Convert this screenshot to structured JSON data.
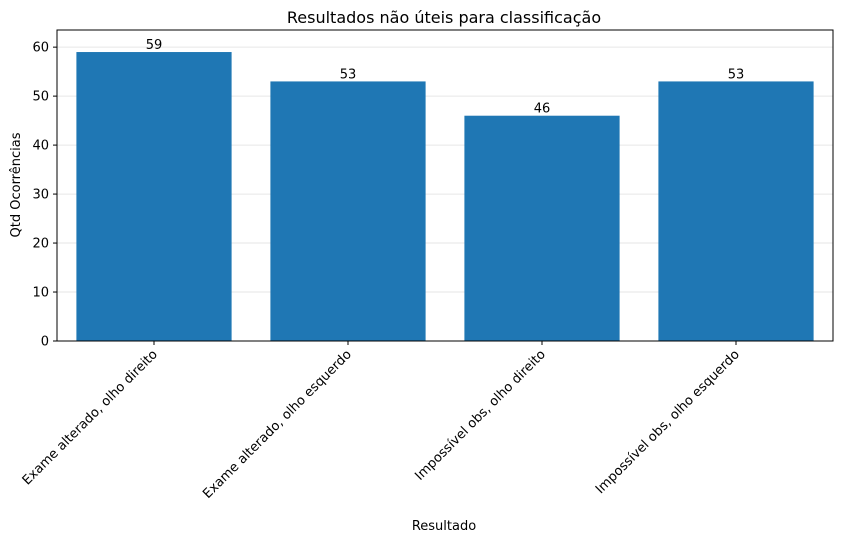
{
  "chart_data": {
    "type": "bar",
    "title": "Resultados não úteis para classificação",
    "xlabel": "Resultado",
    "ylabel": "Qtd Ocorrências",
    "categories": [
      "Exame alterado, olho direito",
      "Exame alterado, olho esquerdo",
      "Impossível obs, olho direito",
      "Impossível obs, olho esquerdo"
    ],
    "values": [
      59,
      53,
      46,
      53
    ],
    "data_labels": [
      "59",
      "53",
      "46",
      "53"
    ],
    "ylim": [
      0,
      63.5
    ],
    "yticks": [
      0,
      10,
      20,
      30,
      40,
      50,
      60
    ],
    "grid": "horizontal",
    "bar_color": "#1f77b4",
    "grid_color": "#e6e6e6"
  }
}
